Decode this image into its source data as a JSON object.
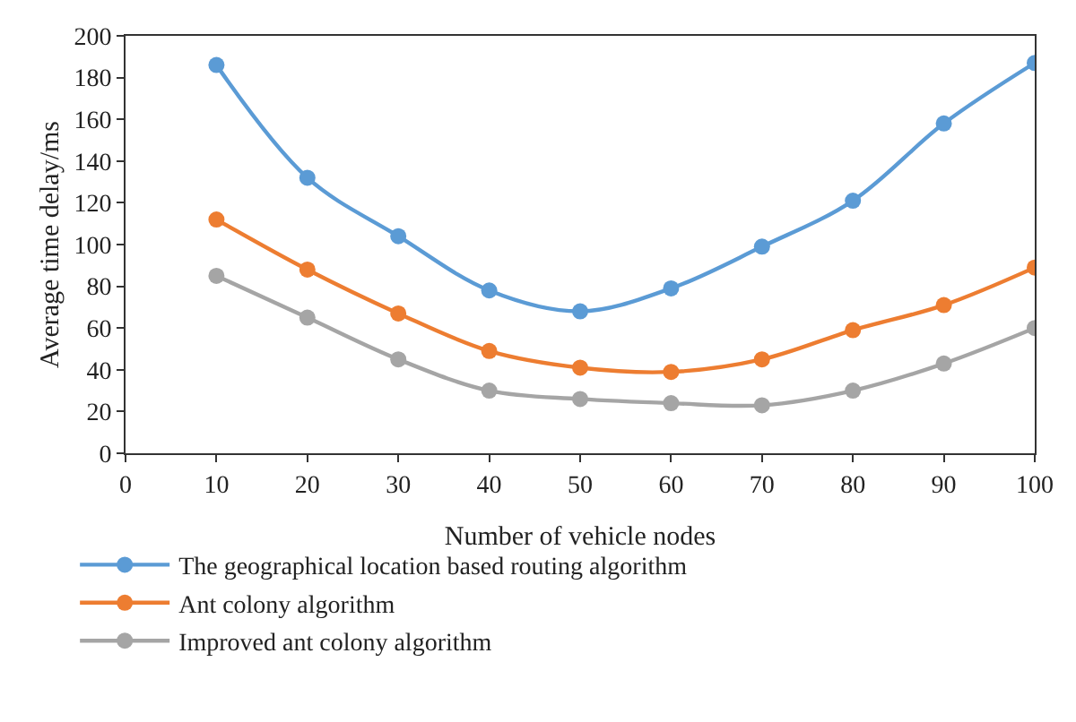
{
  "chart_data": {
    "type": "line",
    "xlabel": "Number of vehicle nodes",
    "ylabel": "Average time delay/ms",
    "x": [
      10,
      20,
      30,
      40,
      50,
      60,
      70,
      80,
      90,
      100
    ],
    "xlim": [
      0,
      100
    ],
    "xticks": [
      0,
      10,
      20,
      30,
      40,
      50,
      60,
      70,
      80,
      90,
      100
    ],
    "ylim": [
      0,
      200
    ],
    "yticks": [
      0,
      20,
      40,
      60,
      80,
      100,
      120,
      140,
      160,
      180,
      200
    ],
    "legend": "bottom",
    "marker": "circle",
    "line_style": "solid",
    "series": [
      {
        "name": "The geographical location based routing algorithm",
        "color": "#5b9bd5",
        "values": [
          186,
          132,
          104,
          78,
          68,
          79,
          99,
          121,
          158,
          187
        ]
      },
      {
        "name": "Ant colony algorithm",
        "color": "#ed7d31",
        "values": [
          112,
          88,
          67,
          49,
          41,
          39,
          45,
          59,
          71,
          89
        ]
      },
      {
        "name": "Improved ant colony algorithm",
        "color": "#a5a5a5",
        "values": [
          85,
          65,
          45,
          30,
          26,
          24,
          23,
          30,
          43,
          60
        ]
      }
    ]
  }
}
